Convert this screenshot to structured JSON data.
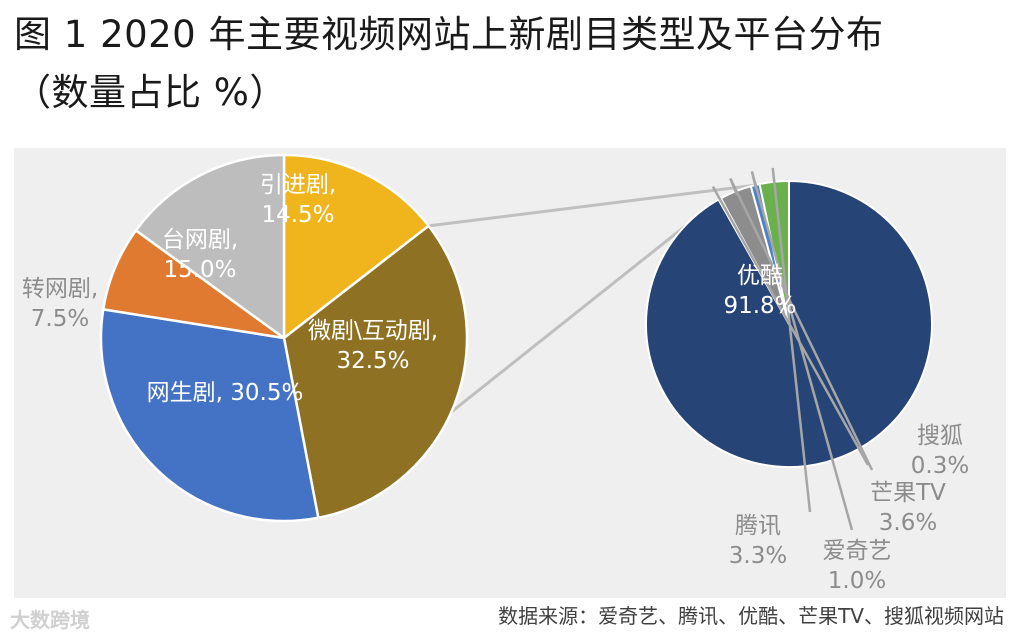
{
  "title": {
    "line1": "图 1 2020 年主要视频网站上新剧目类型及平台分布",
    "line2": "（数量占比 %）"
  },
  "chart_data": [
    {
      "type": "pie",
      "categories": [
        "引进剧",
        "微剧\\互动剧",
        "网生剧",
        "转网剧",
        "台网剧"
      ],
      "values": [
        14.5,
        32.5,
        30.5,
        7.5,
        15.0
      ],
      "data_labels": [
        "引进剧,\n14.5%",
        "微剧\\互动剧,\n32.5%",
        "网生剧, 30.5%",
        "转网剧,\n7.5%",
        "台网剧,\n15.0%"
      ],
      "colors": [
        "#f0b41d",
        "#8f7124",
        "#4472c4",
        "#e07a31",
        "#bdbdbd"
      ]
    },
    {
      "type": "pie",
      "categories": [
        "优酷",
        "搜狐",
        "芒果TV",
        "爱奇艺",
        "腾讯"
      ],
      "values": [
        91.8,
        0.3,
        3.6,
        1.0,
        3.3
      ],
      "data_labels": [
        "优酷\n91.8%",
        "搜狐\n0.3%",
        "芒果TV\n3.6%",
        "爱奇艺\n1.0%",
        "腾讯\n3.3%"
      ],
      "colors": [
        "#264475",
        "#a64b22",
        "#8d8d8d",
        "#4b82c8",
        "#6ab04c"
      ]
    }
  ],
  "source": "数据来源：爱奇艺、腾讯、优酷、芒果TV、搜狐视频网站",
  "watermark": "大数跨境"
}
